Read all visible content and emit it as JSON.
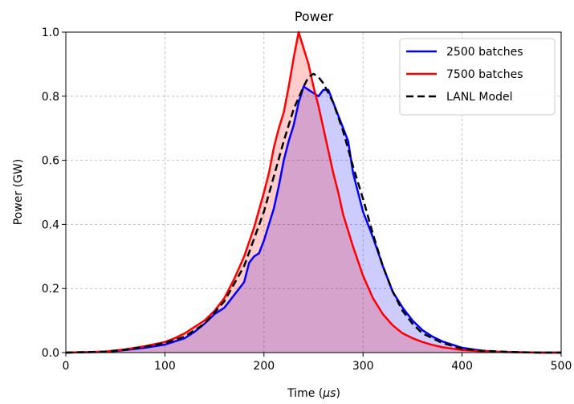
{
  "chart_data": {
    "type": "line",
    "title": "Power",
    "xlabel": "Time (",
    "xlabel_mu": "μs",
    "xlabel_close": ")",
    "ylabel": "Power (GW)",
    "xlim": [
      0,
      500
    ],
    "ylim": [
      0,
      1.0
    ],
    "xticks": [
      0,
      100,
      200,
      300,
      400,
      500
    ],
    "yticks": [
      0.0,
      0.2,
      0.4,
      0.6,
      0.8,
      1.0
    ],
    "xtick_labels": [
      "0",
      "100",
      "200",
      "300",
      "400",
      "500"
    ],
    "ytick_labels": [
      "0.0",
      "0.2",
      "0.4",
      "0.6",
      "0.8",
      "1.0"
    ],
    "grid": true,
    "legend_position": "top-right",
    "series": [
      {
        "name": "2500 batches",
        "color": "#0000ff",
        "fill": "rgba(0,0,255,0.2)",
        "style": "solid",
        "x": [
          0,
          40,
          60,
          80,
          100,
          120,
          130,
          140,
          150,
          160,
          170,
          180,
          185,
          190,
          195,
          200,
          205,
          210,
          215,
          220,
          225,
          230,
          235,
          240,
          245,
          250,
          255,
          260,
          265,
          270,
          275,
          280,
          285,
          290,
          295,
          300,
          310,
          320,
          330,
          340,
          350,
          360,
          370,
          380,
          400,
          420,
          440,
          460,
          480,
          500
        ],
        "y": [
          0.0,
          0.002,
          0.008,
          0.015,
          0.025,
          0.045,
          0.065,
          0.09,
          0.12,
          0.14,
          0.18,
          0.22,
          0.28,
          0.3,
          0.31,
          0.35,
          0.4,
          0.45,
          0.52,
          0.6,
          0.66,
          0.71,
          0.78,
          0.83,
          0.82,
          0.81,
          0.8,
          0.82,
          0.82,
          0.78,
          0.74,
          0.7,
          0.66,
          0.56,
          0.5,
          0.44,
          0.36,
          0.27,
          0.19,
          0.14,
          0.1,
          0.07,
          0.05,
          0.035,
          0.015,
          0.006,
          0.002,
          0.001,
          0.0,
          0.0
        ]
      },
      {
        "name": "7500 batches",
        "color": "#ff0000",
        "fill": "rgba(255,0,0,0.2)",
        "style": "solid",
        "x": [
          0,
          40,
          60,
          80,
          100,
          110,
          120,
          130,
          140,
          150,
          160,
          170,
          180,
          190,
          200,
          205,
          210,
          215,
          220,
          225,
          230,
          235,
          240,
          245,
          250,
          255,
          260,
          265,
          270,
          275,
          280,
          290,
          300,
          310,
          320,
          330,
          340,
          350,
          360,
          370,
          380,
          400,
          420,
          440,
          460,
          480,
          500
        ],
        "y": [
          0.0,
          0.003,
          0.01,
          0.02,
          0.033,
          0.045,
          0.06,
          0.08,
          0.1,
          0.13,
          0.17,
          0.23,
          0.3,
          0.39,
          0.5,
          0.56,
          0.64,
          0.7,
          0.75,
          0.83,
          0.92,
          1.0,
          0.95,
          0.9,
          0.83,
          0.77,
          0.7,
          0.63,
          0.56,
          0.5,
          0.43,
          0.33,
          0.24,
          0.17,
          0.12,
          0.085,
          0.06,
          0.045,
          0.033,
          0.024,
          0.017,
          0.008,
          0.004,
          0.002,
          0.001,
          0.0,
          0.0
        ]
      },
      {
        "name": "LANL Model",
        "color": "#000000",
        "style": "dashed",
        "x": [
          0,
          40,
          60,
          80,
          100,
          120,
          140,
          160,
          180,
          200,
          210,
          220,
          230,
          240,
          245,
          250,
          255,
          260,
          270,
          280,
          290,
          300,
          310,
          320,
          330,
          340,
          350,
          360,
          380,
          400,
          420,
          440,
          460,
          480,
          500
        ],
        "y": [
          0.0,
          0.003,
          0.009,
          0.018,
          0.03,
          0.05,
          0.09,
          0.16,
          0.27,
          0.44,
          0.55,
          0.66,
          0.76,
          0.83,
          0.86,
          0.87,
          0.86,
          0.84,
          0.78,
          0.69,
          0.58,
          0.48,
          0.37,
          0.27,
          0.19,
          0.13,
          0.09,
          0.06,
          0.03,
          0.012,
          0.006,
          0.003,
          0.001,
          0.0,
          0.0
        ]
      }
    ]
  }
}
